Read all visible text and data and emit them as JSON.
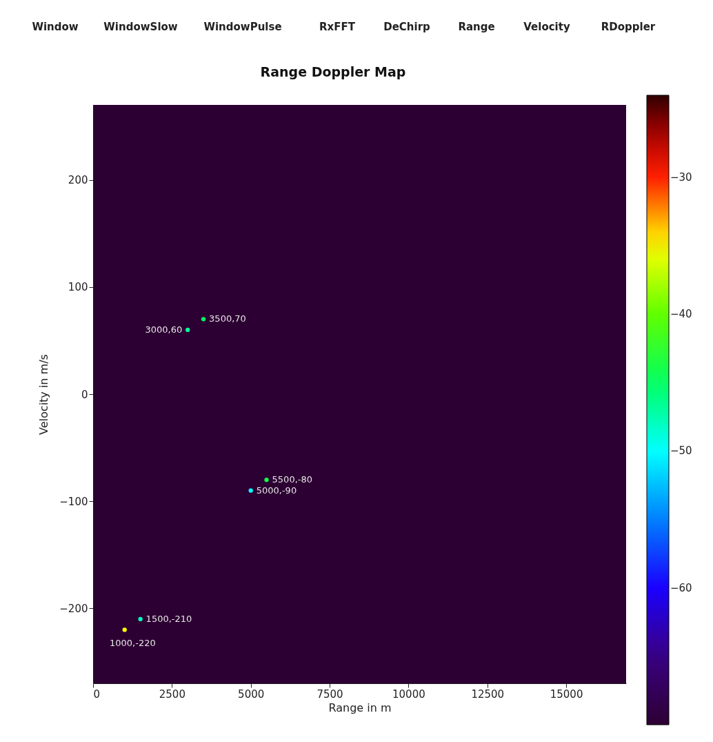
{
  "chart_data": {
    "type": "scatter",
    "title": "Range Doppler Map",
    "xlabel": "Range in m",
    "ylabel": "Velocity in m/s",
    "x": [
      1000,
      1500,
      3000,
      3500,
      5000,
      5500
    ],
    "values": [
      -220,
      -210,
      60,
      70,
      -90,
      -80
    ],
    "cvalues": [
      -35,
      -48,
      -47,
      -45,
      -50,
      -44
    ],
    "xlim": [
      0,
      16900
    ],
    "xticks": [
      0,
      2500,
      5000,
      7500,
      10000,
      12500,
      15000
    ],
    "ylim": [
      -270,
      270
    ],
    "yticks": [
      -200,
      -100,
      0,
      100,
      200
    ],
    "clim": [
      -70,
      -24
    ],
    "cticks": [
      -60,
      -50,
      -40,
      -30
    ],
    "grid": false,
    "marker": "circle",
    "annotations": [
      {
        "text": "1000,-220",
        "x": 1000,
        "y": -220
      },
      {
        "text": "1500,-210",
        "x": 1500,
        "y": -210
      },
      {
        "text": "3000,60",
        "x": 3000,
        "y": 60
      },
      {
        "text": "3500,70",
        "x": 3500,
        "y": 70
      },
      {
        "text": "5000,-90",
        "x": 5000,
        "y": -90
      },
      {
        "text": "5500,-80",
        "x": 5500,
        "y": -80
      },
      "Window",
      "WindowSlow",
      "WindowPulse",
      "RxFFT",
      "DeChirp",
      "Range",
      "Velocity",
      "RDoppler"
    ]
  }
}
